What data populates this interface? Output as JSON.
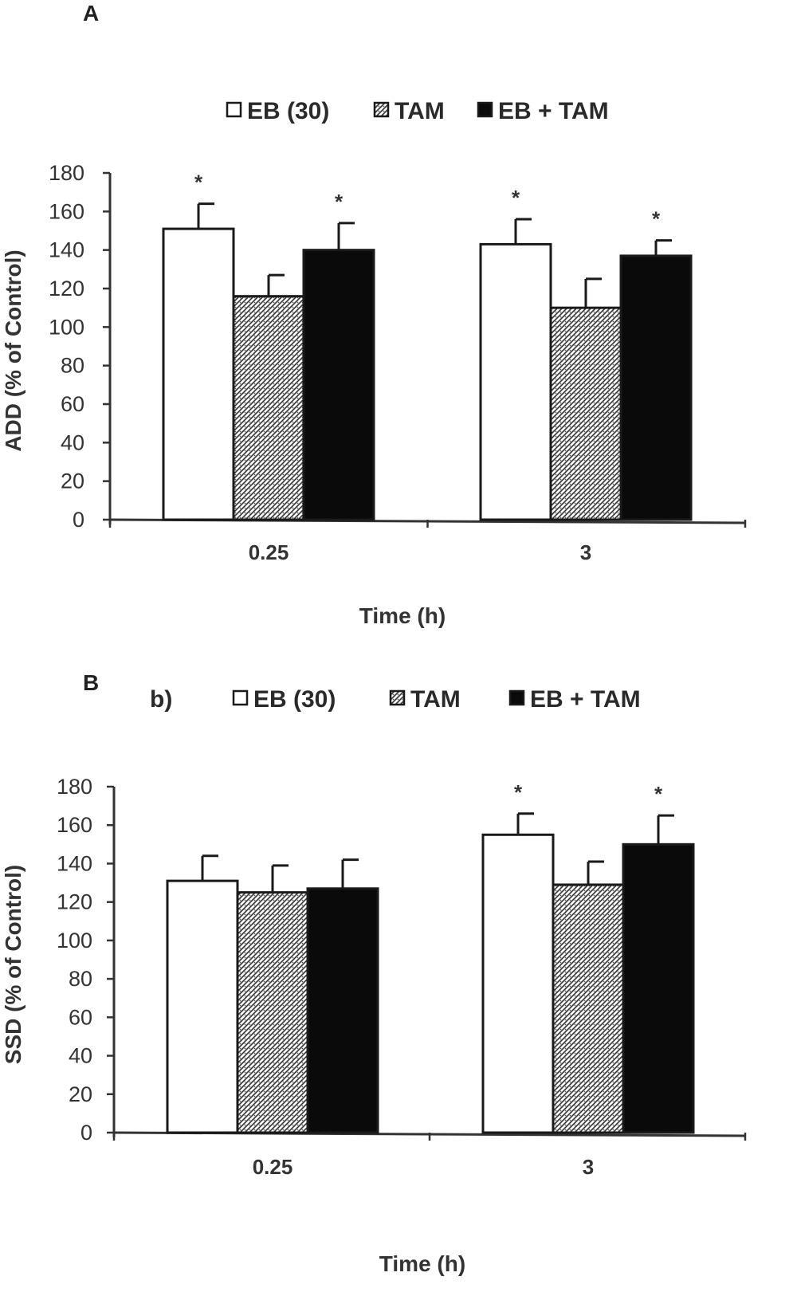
{
  "colors": {
    "axis": "#333333",
    "bar_outline": "#1a1a1a",
    "bar_black": "#0a0a0a",
    "bar_white": "#ffffff"
  },
  "chart_data": [
    {
      "panel": "A",
      "type": "bar",
      "legend_prefix": "",
      "legend": [
        "EB (30)",
        "TAM",
        "EB + TAM"
      ],
      "categories": [
        "0.25",
        "3"
      ],
      "xlabel": "Time (h)",
      "ylabel": "ADD (% of Control)",
      "ylim": [
        0,
        180
      ],
      "yticks": [
        0,
        20,
        40,
        60,
        80,
        100,
        120,
        140,
        160,
        180
      ],
      "series": [
        {
          "name": "EB (30)",
          "values": [
            151,
            143
          ],
          "errors": [
            13,
            13
          ],
          "significant": [
            true,
            true
          ],
          "fill": "white"
        },
        {
          "name": "TAM",
          "values": [
            116,
            110
          ],
          "errors": [
            11,
            15
          ],
          "significant": [
            false,
            false
          ],
          "fill": "hatch"
        },
        {
          "name": "EB + TAM",
          "values": [
            140,
            137
          ],
          "errors": [
            14,
            8
          ],
          "significant": [
            true,
            true
          ],
          "fill": "black"
        }
      ],
      "star_label": "*"
    },
    {
      "panel": "B",
      "type": "bar",
      "legend_prefix": "b)",
      "legend": [
        "EB (30)",
        "TAM",
        "EB + TAM"
      ],
      "categories": [
        "0.25",
        "3"
      ],
      "xlabel": "Time (h)",
      "ylabel": "SSD (% of Control)",
      "ylim": [
        0,
        180
      ],
      "yticks": [
        0,
        20,
        40,
        60,
        80,
        100,
        120,
        140,
        160,
        180
      ],
      "series": [
        {
          "name": "EB (30)",
          "values": [
            131,
            155
          ],
          "errors": [
            13,
            11
          ],
          "significant": [
            false,
            true
          ],
          "fill": "white"
        },
        {
          "name": "TAM",
          "values": [
            125,
            129
          ],
          "errors": [
            14,
            12
          ],
          "significant": [
            false,
            false
          ],
          "fill": "hatch"
        },
        {
          "name": "EB + TAM",
          "values": [
            127,
            150
          ],
          "errors": [
            15,
            15
          ],
          "significant": [
            false,
            true
          ],
          "fill": "black"
        }
      ],
      "star_label": "*"
    }
  ]
}
